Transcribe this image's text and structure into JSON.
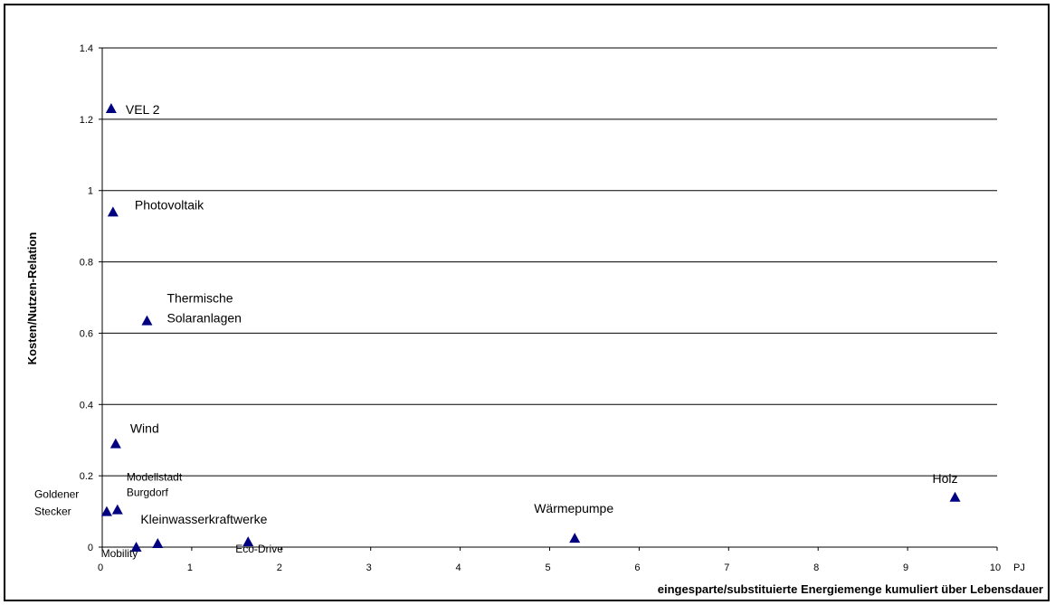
{
  "chart_data": {
    "type": "scatter",
    "title": "",
    "xlabel": "eingesparte/substituierte Energiemenge kumuliert über Lebensdauer",
    "xunit": "PJ",
    "ylabel": "Kosten/Nutzen-Relation",
    "xlim": [
      0,
      10
    ],
    "ylim": [
      0,
      1.4
    ],
    "xticks": [
      "0",
      "1",
      "2",
      "3",
      "4",
      "5",
      "6",
      "7",
      "8",
      "9",
      "10"
    ],
    "yticks": [
      "0",
      "0.2",
      "0.4",
      "0.6",
      "0.8",
      "1",
      "1.2",
      "1.4"
    ],
    "grid": "horizontal",
    "marker_color": "#000080",
    "points": [
      {
        "label": "VEL 2",
        "x": 0.1,
        "y": 1.23
      },
      {
        "label": "Photovoltaik",
        "x": 0.12,
        "y": 0.94
      },
      {
        "label": "Thermische Solaranlagen",
        "x": 0.5,
        "y": 0.635
      },
      {
        "label": "Wind",
        "x": 0.15,
        "y": 0.29
      },
      {
        "label": "Modellstadt Burgdorf",
        "x": 0.17,
        "y": 0.105
      },
      {
        "label": "Goldener Stecker",
        "x": 0.05,
        "y": 0.1
      },
      {
        "label": "Kleinwasserkraftwerke",
        "x": 0.62,
        "y": 0.01
      },
      {
        "label": "Mobility",
        "x": 0.38,
        "y": 0.0
      },
      {
        "label": "Eco-Drive",
        "x": 1.63,
        "y": 0.015
      },
      {
        "label": "Wärmepumpe",
        "x": 5.28,
        "y": 0.025
      },
      {
        "label": "Holz",
        "x": 9.53,
        "y": 0.14
      }
    ]
  }
}
